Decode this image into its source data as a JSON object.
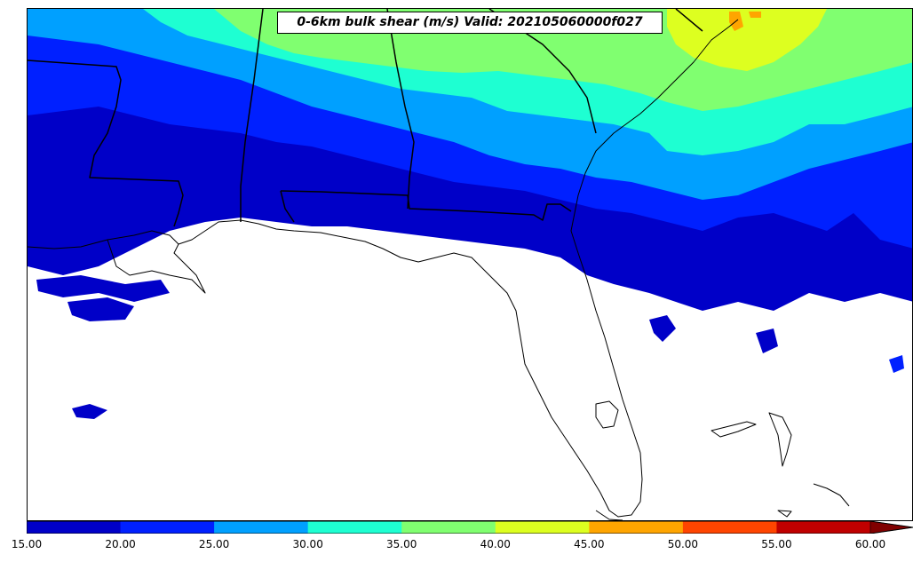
{
  "title": "0-6km bulk shear (m/s) Valid: 202105060000f027",
  "colorbar": {
    "tick_labels": [
      "15.00",
      "20.00",
      "25.00",
      "30.00",
      "35.00",
      "40.00",
      "45.00",
      "50.00",
      "55.00",
      "60.00"
    ],
    "bands": [
      {
        "range": "15-20",
        "color": "#0000c8"
      },
      {
        "range": "20-25",
        "color": "#0020ff"
      },
      {
        "range": "25-30",
        "color": "#00a0ff"
      },
      {
        "range": "30-35",
        "color": "#1effd2"
      },
      {
        "range": "35-40",
        "color": "#80ff70"
      },
      {
        "range": "40-45",
        "color": "#ddff20"
      },
      {
        "range": "45-50",
        "color": "#ffa500"
      },
      {
        "range": "50-55",
        "color": "#ff4500"
      },
      {
        "range": "55-60",
        "color": "#c00000"
      },
      {
        "range": ">60",
        "color": "#800000"
      }
    ],
    "extend": "max"
  }
}
